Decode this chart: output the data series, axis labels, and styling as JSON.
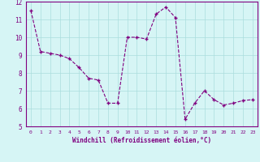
{
  "x": [
    0,
    1,
    2,
    3,
    4,
    5,
    6,
    7,
    8,
    9,
    10,
    11,
    12,
    13,
    14,
    15,
    16,
    17,
    18,
    19,
    20,
    21,
    22,
    23
  ],
  "y": [
    11.5,
    9.2,
    9.1,
    9.0,
    8.8,
    8.3,
    7.7,
    7.6,
    6.3,
    6.3,
    10.0,
    10.0,
    9.9,
    11.3,
    11.7,
    11.1,
    5.4,
    6.3,
    7.0,
    6.5,
    6.2,
    6.3,
    6.45,
    6.5
  ],
  "line_color": "#800080",
  "marker": "+",
  "bg_color": "#d6f5f5",
  "grid_color": "#aadddd",
  "xlabel": "Windchill (Refroidissement éolien,°C)",
  "xlabel_color": "#800080",
  "tick_color": "#800080",
  "spine_color": "#800080",
  "xlim": [
    -0.5,
    23.5
  ],
  "ylim": [
    5,
    12
  ],
  "yticks": [
    5,
    6,
    7,
    8,
    9,
    10,
    11,
    12
  ],
  "xticks": [
    0,
    1,
    2,
    3,
    4,
    5,
    6,
    7,
    8,
    9,
    10,
    11,
    12,
    13,
    14,
    15,
    16,
    17,
    18,
    19,
    20,
    21,
    22,
    23
  ],
  "figsize": [
    3.2,
    2.0
  ],
  "dpi": 100
}
